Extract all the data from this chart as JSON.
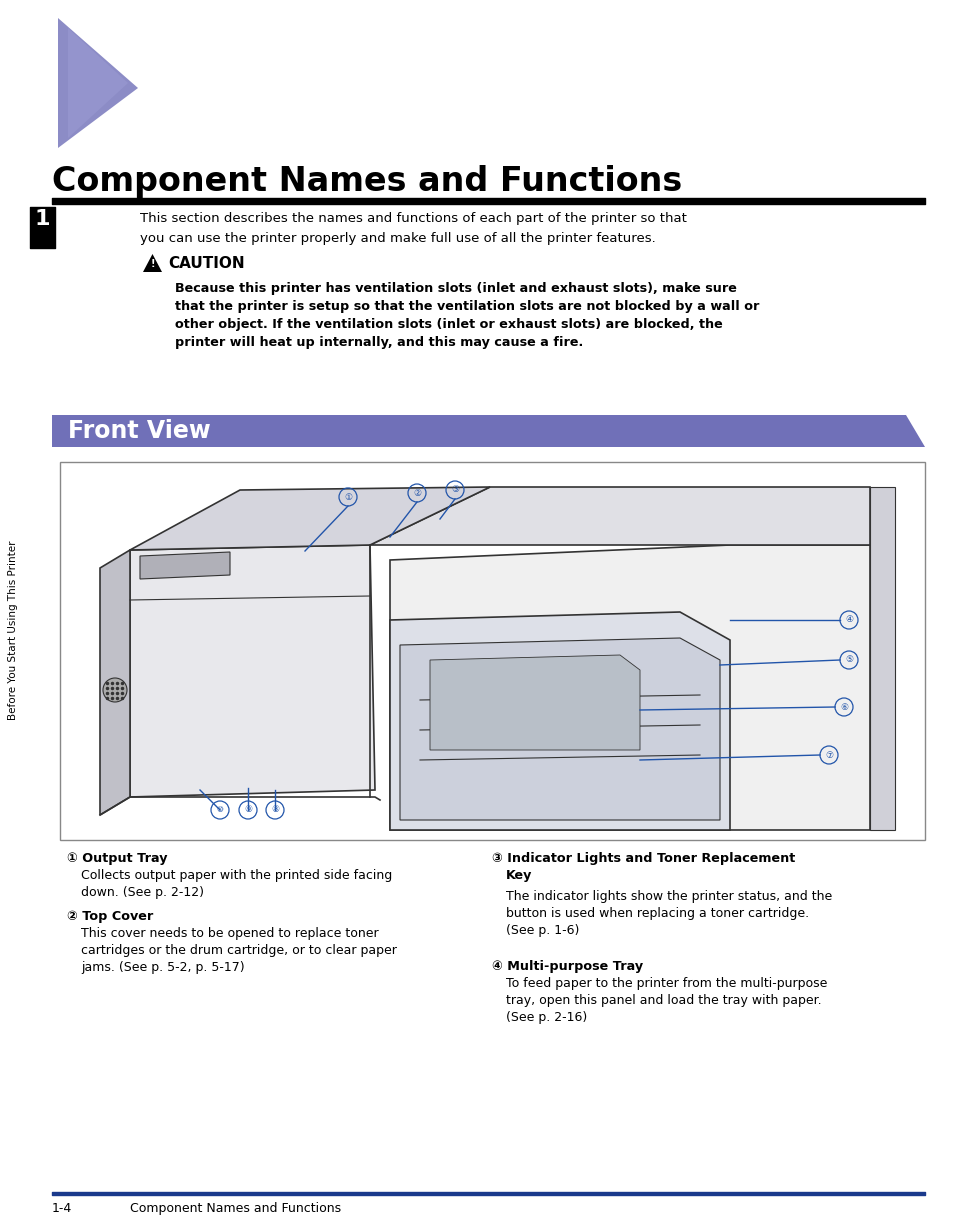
{
  "bg_color": "#ffffff",
  "title": "Component Names and Functions",
  "title_fontsize": 24,
  "title_color": "#000000",
  "triangle_color": "#8080c0",
  "header_bar_color": "#7070b8",
  "header_bar_text": "Front View",
  "header_bar_text_color": "#ffffff",
  "header_bar_fontsize": 17,
  "thick_rule_color": "#000000",
  "side_label": "Before You Start Using This Printer",
  "side_label_color": "#000000",
  "chapter_num": "1",
  "chapter_bg": "#000000",
  "chapter_text_color": "#ffffff",
  "intro_text_line1": "This section describes the names and functions of each part of the printer so that",
  "intro_text_line2": "you can use the printer properly and make full use of all the printer features.",
  "caution_title": "CAUTION",
  "caution_body_line1": "Because this printer has ventilation slots (inlet and exhaust slots), make sure",
  "caution_body_line2": "that the printer is setup so that the ventilation slots are not blocked by a wall or",
  "caution_body_line3": "other object. If the ventilation slots (inlet or exhaust slots) are blocked, the",
  "caution_body_line4": "printer will heat up internally, and this may cause a fire.",
  "item1_title": "① Output Tray",
  "item1_body_line1": "Collects output paper with the printed side facing",
  "item1_body_line2": "down. (See p. 2-12)",
  "item2_title": "② Top Cover",
  "item2_body_line1": "This cover needs to be opened to replace toner",
  "item2_body_line2": "cartridges or the drum cartridge, or to clear paper",
  "item2_body_line3": "jams. (See p. 5-2, p. 5-17)",
  "item3_title_line1": "③ Indicator Lights and Toner Replacement",
  "item3_title_line2": "Key",
  "item3_body_line1": "The indicator lights show the printer status, and the",
  "item3_body_line2": "button is used when replacing a toner cartridge.",
  "item3_body_line3": "(See p. 1-6)",
  "item4_title": "④ Multi-purpose Tray",
  "item4_body_line1": "To feed paper to the printer from the multi-purpose",
  "item4_body_line2": "tray, open this panel and load the tray with paper.",
  "item4_body_line3": "(See p. 2-16)",
  "footer_line_color": "#1a3a8c",
  "footer_text_pagenum": "1-4",
  "footer_text_title": "Component Names and Functions",
  "footer_fontsize": 9,
  "diagram_border_color": "#888888",
  "callout_line_color": "#2255aa",
  "callout_circle_color": "#2255aa"
}
